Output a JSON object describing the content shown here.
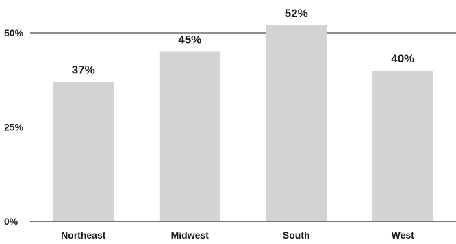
{
  "chart_data": {
    "type": "bar",
    "categories": [
      "Northeast",
      "Midwest",
      "South",
      "West"
    ],
    "values": [
      37,
      45,
      52,
      40
    ],
    "value_labels": [
      "37%",
      "45%",
      "52%",
      "40%"
    ],
    "y_ticks": [
      0,
      25,
      50
    ],
    "y_tick_labels": [
      "0%",
      "25%",
      "50%"
    ],
    "ylim": [
      0,
      55
    ],
    "grid": true,
    "title": "",
    "xlabel": "",
    "ylabel": "",
    "colors": {
      "bar": "#d3d3d3",
      "grid": "#222222",
      "text": "#1a1a1a"
    }
  }
}
